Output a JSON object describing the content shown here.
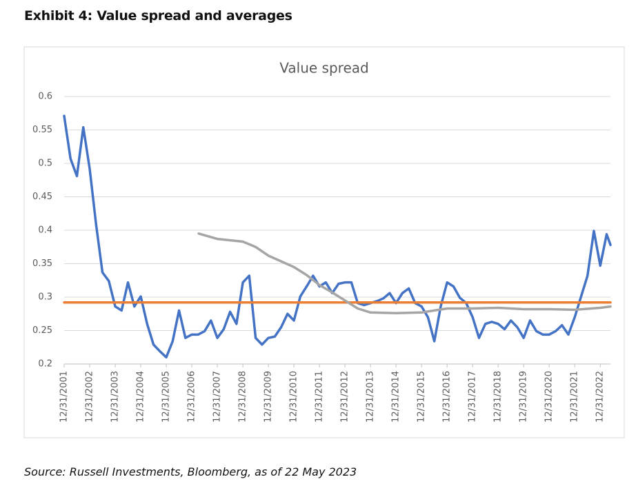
{
  "header": {
    "title": "Exhibit 4: Value spread and averages"
  },
  "footer": {
    "source": "Source: Russell Investments, Bloomberg, as of 22 May 2023"
  },
  "chart_data": {
    "type": "line",
    "title": "Value spread",
    "series": [
      {
        "color": "#4472c4",
        "x": [
          2002.0,
          2002.25,
          2002.5,
          2002.75,
          2003.0,
          2003.25,
          2003.5,
          2003.75,
          2004.0,
          2004.25,
          2004.5,
          2004.75,
          2005.0,
          2005.25,
          2005.5,
          2005.75,
          2006.0,
          2006.25,
          2006.5,
          2006.75,
          2007.0,
          2007.25,
          2007.5,
          2007.75,
          2008.0,
          2008.25,
          2008.5,
          2008.75,
          2009.0,
          2009.25,
          2009.5,
          2009.75,
          2010.0,
          2010.25,
          2010.5,
          2010.75,
          2011.0,
          2011.25,
          2011.5,
          2011.75,
          2012.0,
          2012.25,
          2012.5,
          2012.75,
          2013.0,
          2013.25,
          2013.5,
          2013.75,
          2014.0,
          2014.25,
          2014.5,
          2014.75,
          2015.0,
          2015.25,
          2015.5,
          2015.75,
          2016.0,
          2016.25,
          2016.5,
          2016.75,
          2017.0,
          2017.25,
          2017.5,
          2017.75,
          2018.0,
          2018.25,
          2018.5,
          2018.75,
          2019.0,
          2019.25,
          2019.5,
          2019.75,
          2020.0,
          2020.25,
          2020.5,
          2020.75,
          2021.0,
          2021.25,
          2021.5,
          2021.75,
          2022.0,
          2022.25,
          2022.5,
          2022.75,
          2023.0,
          2023.25,
          2023.4
        ],
        "values": [
          0.571,
          0.507,
          0.481,
          0.554,
          0.492,
          0.409,
          0.337,
          0.324,
          0.286,
          0.28,
          0.322,
          0.286,
          0.301,
          0.26,
          0.229,
          0.219,
          0.21,
          0.234,
          0.28,
          0.239,
          0.244,
          0.244,
          0.249,
          0.265,
          0.239,
          0.252,
          0.278,
          0.26,
          0.322,
          0.332,
          0.239,
          0.229,
          0.239,
          0.241,
          0.255,
          0.275,
          0.265,
          0.301,
          0.316,
          0.332,
          0.316,
          0.322,
          0.306,
          0.32,
          0.322,
          0.322,
          0.291,
          0.288,
          0.291,
          0.294,
          0.298,
          0.306,
          0.291,
          0.306,
          0.313,
          0.291,
          0.286,
          0.27,
          0.234,
          0.286,
          0.322,
          0.316,
          0.299,
          0.291,
          0.27,
          0.239,
          0.26,
          0.263,
          0.26,
          0.252,
          0.265,
          0.255,
          0.239,
          0.265,
          0.249,
          0.244,
          0.244,
          0.249,
          0.258,
          0.244,
          0.27,
          0.301,
          0.332,
          0.399,
          0.347,
          0.394,
          0.378
        ]
      },
      {
        "color": "#ed7d31",
        "x": [
          2002.0,
          2023.4
        ],
        "values": [
          0.292,
          0.292
        ]
      },
      {
        "color": "#a5a5a5",
        "x": [
          2007.27,
          2008.0,
          2009.0,
          2009.5,
          2010.0,
          2011.0,
          2011.5,
          2012.0,
          2012.5,
          2013.0,
          2013.5,
          2014.0,
          2015.0,
          2016.0,
          2016.5,
          2017.0,
          2018.0,
          2019.0,
          2020.0,
          2021.0,
          2022.0,
          2023.0,
          2023.4
        ],
        "values": [
          0.395,
          0.387,
          0.383,
          0.375,
          0.362,
          0.345,
          0.333,
          0.318,
          0.307,
          0.295,
          0.283,
          0.277,
          0.276,
          0.277,
          0.28,
          0.283,
          0.283,
          0.284,
          0.282,
          0.282,
          0.281,
          0.284,
          0.286
        ]
      }
    ],
    "xlim": [
      2002.0,
      2023.4
    ],
    "xticks": [
      {
        "value": 2002,
        "label": "12/31/2001"
      },
      {
        "value": 2003,
        "label": "12/31/2002"
      },
      {
        "value": 2004,
        "label": "12/31/2003"
      },
      {
        "value": 2005,
        "label": "12/31/2004"
      },
      {
        "value": 2006,
        "label": "12/31/2005"
      },
      {
        "value": 2007,
        "label": "12/31/2006"
      },
      {
        "value": 2008,
        "label": "12/31/2007"
      },
      {
        "value": 2009,
        "label": "12/31/2008"
      },
      {
        "value": 2010,
        "label": "12/31/2009"
      },
      {
        "value": 2011,
        "label": "12/31/2010"
      },
      {
        "value": 2012,
        "label": "12/31/2011"
      },
      {
        "value": 2013,
        "label": "12/31/2012"
      },
      {
        "value": 2014,
        "label": "12/31/2013"
      },
      {
        "value": 2015,
        "label": "12/31/2014"
      },
      {
        "value": 2016,
        "label": "12/31/2015"
      },
      {
        "value": 2017,
        "label": "12/31/2016"
      },
      {
        "value": 2018,
        "label": "12/31/2017"
      },
      {
        "value": 2019,
        "label": "12/31/2018"
      },
      {
        "value": 2020,
        "label": "12/31/2019"
      },
      {
        "value": 2021,
        "label": "12/31/2020"
      },
      {
        "value": 2022,
        "label": "12/31/2021"
      },
      {
        "value": 2023,
        "label": "12/31/2022"
      }
    ],
    "ylim": [
      0.2,
      0.6
    ],
    "yticks": [
      0.2,
      0.25,
      0.3,
      0.35,
      0.4,
      0.45,
      0.5,
      0.55,
      0.6
    ],
    "grid": true
  }
}
